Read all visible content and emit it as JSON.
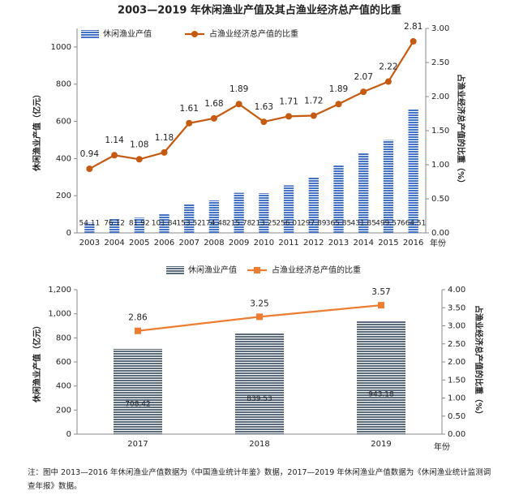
{
  "title": "2003—2019 年休闲渔业产值及其占渔业经济总产值的比重",
  "chart_data": [
    {
      "type": "bar",
      "categories": [
        "2003",
        "2004",
        "2005",
        "2006",
        "2007",
        "2008",
        "2009",
        "2010",
        "2011",
        "2012",
        "2013",
        "2014",
        "2015",
        "2016"
      ],
      "x_label": "年份",
      "y_label": "休闲渔业产值（亿元）",
      "y2_label": "占渔业经济总产值的比重（%）",
      "series": [
        {
          "name": "休闲渔业产值",
          "kind": "bar",
          "color": "#4472c4",
          "values": [
            54.11,
            76.12,
            81.92,
            101.84,
            153.52,
            174.48,
            215.78,
            213.25,
            256.01,
            297.89,
            365.85,
            431.85,
            499.57,
            664.51
          ]
        },
        {
          "name": "占渔业经济总产值的比重",
          "kind": "line",
          "axis": "y2",
          "color": "#c55a11",
          "values": [
            0.94,
            1.14,
            1.08,
            1.18,
            1.61,
            1.68,
            1.89,
            1.63,
            1.71,
            1.72,
            1.89,
            2.07,
            2.22,
            2.81
          ]
        }
      ],
      "ylim": [
        0,
        1100
      ],
      "yticks": [
        0,
        200,
        400,
        600,
        800,
        1000
      ],
      "y2lim": [
        0,
        3
      ],
      "y2ticks": [
        {
          "value": 0,
          "label": "0.00"
        },
        {
          "value": 0.5,
          "label": "0.50"
        },
        {
          "value": 1,
          "label": "1.00"
        },
        {
          "value": 1.5,
          "label": "1.50"
        },
        {
          "value": 2,
          "label": "2.00"
        },
        {
          "value": 2.5,
          "label": "2.50"
        },
        {
          "value": 3,
          "label": "3.00"
        }
      ],
      "legend": "top-left",
      "grid": false
    },
    {
      "type": "bar",
      "categories": [
        "2017",
        "2018",
        "2019"
      ],
      "x_label": "年份",
      "y_label": "休闲渔业产值（亿元）",
      "y2_label": "占渔业经济总产值的比重（%）",
      "series": [
        {
          "name": "休闲渔业产值",
          "kind": "bar",
          "color": "#5b6b7c",
          "values": [
            708.42,
            839.53,
            943.18
          ]
        },
        {
          "name": "占渔业经济总产值的比重",
          "kind": "line",
          "axis": "y2",
          "color": "#ed7d31",
          "values": [
            2.86,
            3.25,
            3.57
          ]
        }
      ],
      "ylim": [
        0,
        1200
      ],
      "yticks": [
        0,
        200,
        400,
        600,
        800,
        {
          "value": 1000,
          "label": "1,000"
        },
        {
          "value": 1200,
          "label": "1,200"
        }
      ],
      "y2lim": [
        0,
        4
      ],
      "y2ticks": [
        {
          "value": 0,
          "label": "0.00"
        },
        {
          "value": 0.5,
          "label": "0.50"
        },
        {
          "value": 1,
          "label": "1.00"
        },
        {
          "value": 1.5,
          "label": "1.50"
        },
        {
          "value": 2,
          "label": "2.00"
        },
        {
          "value": 2.5,
          "label": "2.50"
        },
        {
          "value": 3,
          "label": "3.00"
        },
        {
          "value": 3.5,
          "label": "3.50"
        },
        {
          "value": 4,
          "label": "4.00"
        }
      ],
      "legend": "top-center",
      "grid": false
    }
  ],
  "note": "注：图中 2013—2016 年休闲渔业产值数据为《中国渔业统计年鉴》数据，2017—2019 年休闲渔业产值数据为《休闲渔业统计监测调查年报》数据。"
}
